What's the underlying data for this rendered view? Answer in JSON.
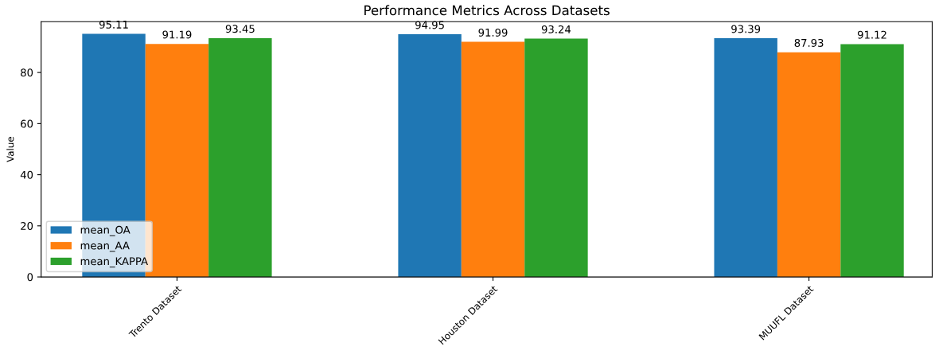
{
  "chart_data": {
    "type": "bar",
    "title": "Performance Metrics Across Datasets",
    "ylabel": "Value",
    "categories": [
      "Trento Dataset",
      "Houston Dataset",
      "MUUFL Dataset"
    ],
    "series": [
      {
        "name": "mean_OA",
        "color": "#1f77b4",
        "values": [
          95.11,
          94.95,
          93.39
        ]
      },
      {
        "name": "mean_AA",
        "color": "#ff7f0e",
        "values": [
          91.19,
          91.99,
          87.93
        ]
      },
      {
        "name": "mean_KAPPA",
        "color": "#2ca02c",
        "values": [
          93.45,
          93.24,
          91.12
        ]
      }
    ],
    "ylim": [
      0,
      99.87
    ],
    "yticks": [
      0,
      20,
      40,
      60,
      80
    ],
    "data_labels": true,
    "legend": "bottom left",
    "grid": false
  }
}
